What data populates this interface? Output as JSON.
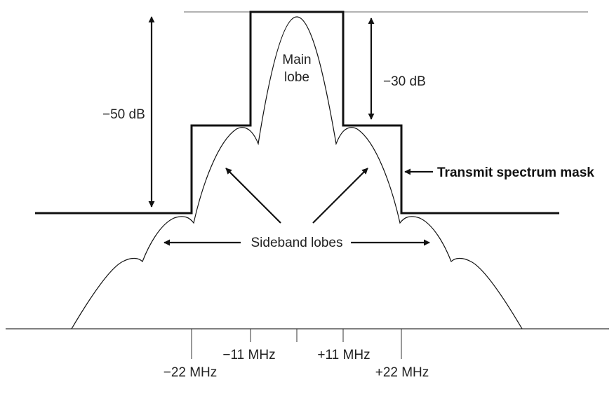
{
  "labels": {
    "main_lobe_line1": "Main",
    "main_lobe_line2": "lobe",
    "minus_30_db": "−30 dB",
    "minus_50_db": "−50 dB",
    "transmit_mask": "Transmit spectrum mask",
    "sideband_lobes": "Sideband lobes"
  },
  "frequency_ticks": {
    "minus_22": "−22 MHz",
    "minus_11": "−11 MHz",
    "plus_11": "+11 MHz",
    "plus_22": "+22 MHz"
  },
  "colors": {
    "line": "#111111",
    "text": "#222222",
    "background": "#ffffff"
  }
}
